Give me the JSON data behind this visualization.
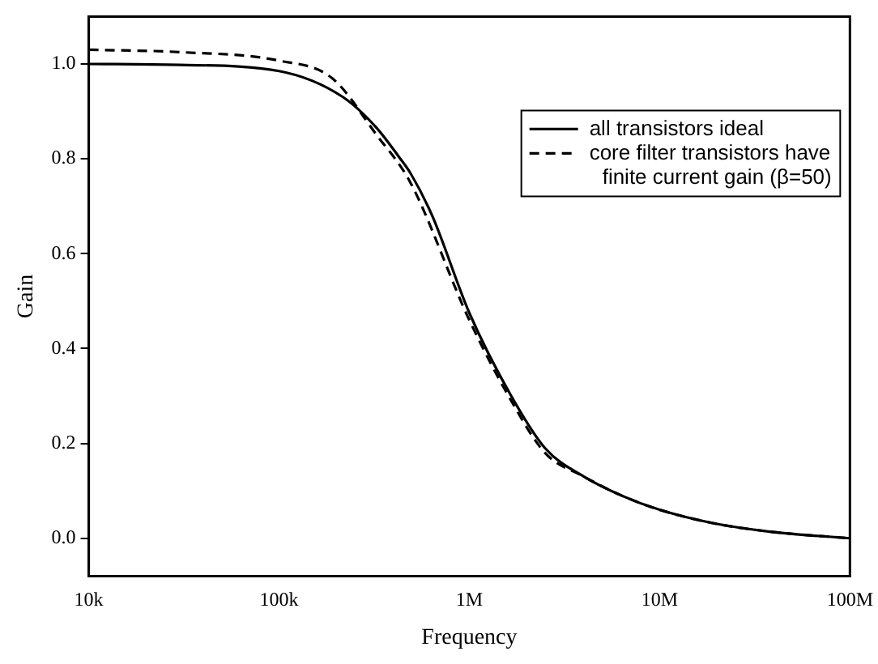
{
  "chart_data": {
    "type": "line",
    "xlabel": "Frequency",
    "ylabel": "Gain",
    "log": "x",
    "xlim": [
      10000,
      100000000
    ],
    "xticks": [
      {
        "value": 10000,
        "label": "10k"
      },
      {
        "value": 100000,
        "label": "100k"
      },
      {
        "value": 1000000,
        "label": "1M"
      },
      {
        "value": 10000000,
        "label": "10M"
      },
      {
        "value": 100000000,
        "label": "100M"
      }
    ],
    "ylim": [
      -0.08,
      1.1
    ],
    "yticks": [
      {
        "value": 0,
        "label": "0.0"
      },
      {
        "value": 0.2,
        "label": "0.2"
      },
      {
        "value": 0.4,
        "label": "0.4"
      },
      {
        "value": 0.6,
        "label": "0.6"
      },
      {
        "value": 0.8,
        "label": "0.8"
      },
      {
        "value": 1,
        "label": "1.0"
      }
    ],
    "grid": false,
    "legend": "top right",
    "marker": "none",
    "series": [
      {
        "name": "all transistors ideal",
        "color": "#000000",
        "line_style": "solid",
        "x": [
          10000,
          30000,
          100000,
          217000,
          326000,
          425000,
          490000,
          638000,
          1000000,
          1660000,
          2500000,
          4000000,
          6400000,
          10000000,
          19000000,
          38000000,
          100000000
        ],
        "values": [
          1.0,
          0.998,
          0.985,
          0.93,
          0.865,
          0.805,
          0.77,
          0.68,
          0.475,
          0.3,
          0.19,
          0.13,
          0.089,
          0.06,
          0.032,
          0.014,
          0.0
        ]
      },
      {
        "name": "core filter transistors have finite current gain (β=50)",
        "color": "#000000",
        "line_style": "dashed",
        "x": [
          10000,
          30000,
          100000,
          190000,
          326000,
          490000,
          1000000,
          1660000,
          2500000,
          4000000,
          6400000,
          10000000,
          19000000,
          38000000,
          100000000
        ],
        "values": [
          1.03,
          1.025,
          1.007,
          0.97,
          0.85,
          0.75,
          0.46,
          0.29,
          0.18,
          0.13,
          0.089,
          0.06,
          0.032,
          0.014,
          0.0
        ]
      }
    ]
  }
}
